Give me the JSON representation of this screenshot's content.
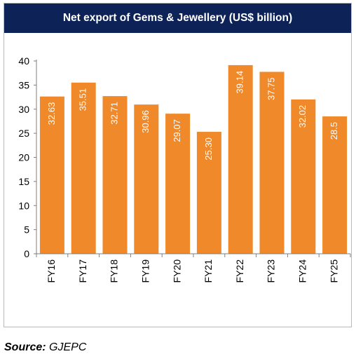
{
  "chart_data": {
    "type": "bar",
    "title": "Net export of Gems & Jewellery (US$ billion)",
    "categories": [
      "FY16",
      "FY17",
      "FY18",
      "FY19",
      "FY20",
      "FY21",
      "FY22",
      "FY23",
      "FY24",
      "FY25"
    ],
    "values": [
      32.63,
      35.51,
      32.71,
      30.96,
      29.07,
      25.3,
      39.14,
      37.75,
      32.02,
      28.5
    ],
    "value_labels": [
      "32.63",
      "35.51",
      "32.71",
      "30.96",
      "29.07",
      "25.30",
      "39.14",
      "37.75",
      "32.02",
      "28.5"
    ],
    "ylim": [
      0,
      40
    ],
    "yticks": [
      0,
      5,
      10,
      15,
      20,
      25,
      30,
      35,
      40
    ],
    "xlabel": "",
    "ylabel": "",
    "grid": false,
    "legend": "none",
    "bar_color": "#f0892a",
    "title_bg_color": "#0d2358"
  },
  "source": {
    "label": "Source:",
    "value": "GJEPC"
  }
}
